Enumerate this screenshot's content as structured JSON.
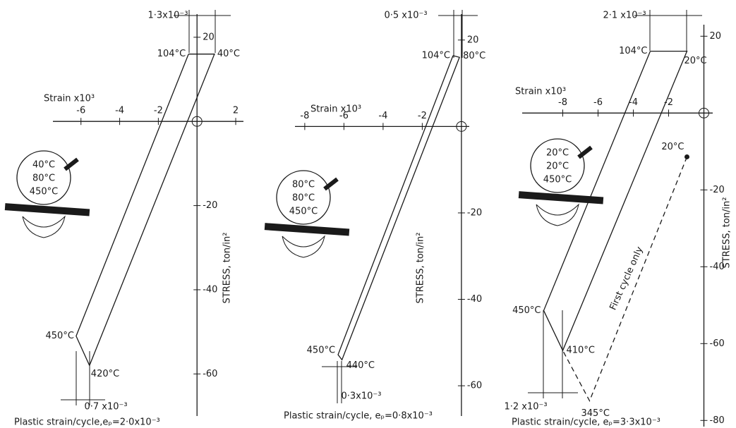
{
  "chart_data": [
    {
      "type": "line",
      "x_label": "Strain x10³",
      "y_label": "STRESS, ton/in²",
      "xlim": [
        -7.45,
        2.4
      ],
      "ylim": [
        -70,
        25.5
      ],
      "xticks": [
        -6,
        -4,
        -2,
        2
      ],
      "yticks": [
        20,
        -20,
        -40,
        -60
      ],
      "series": [
        {
          "color": "#1a1a1a",
          "dashed": false,
          "x": [
            -0.44,
            0.9,
            -5.56,
            -6.25,
            -0.44
          ],
          "values": [
            16,
            16,
            -58,
            -51,
            16
          ],
          "point_labels": [
            "104°C",
            "40°C",
            "420°C",
            "450°C",
            null
          ]
        }
      ],
      "annotations": [
        "1·3x10⁻³",
        "0·7 x10⁻³"
      ],
      "inset_labels": [
        "40°C",
        "80°C",
        "450°C"
      ],
      "caption": "Plastic strain/cycle,eₚ=2·0x10⁻³"
    },
    {
      "type": "line",
      "x_label": "Strain x10³",
      "y_label": "STRESS, ton/in²",
      "xlim": [
        -8.5,
        0.4
      ],
      "ylim": [
        -67,
        26
      ],
      "xticks": [
        -8,
        -6,
        -4,
        -2
      ],
      "yticks": [
        20,
        -20,
        -40,
        -60
      ],
      "series": [
        {
          "color": "#1a1a1a",
          "dashed": false,
          "x": [
            -0.43,
            -0.1,
            -6.1,
            -6.3,
            -0.43
          ],
          "values": [
            16.4,
            16,
            -54,
            -52.8,
            16.4
          ],
          "point_labels": [
            "104°C",
            "80°C",
            "440°C",
            "450°C",
            null
          ]
        }
      ],
      "annotations": [
        "0·5 x10⁻³",
        "0·3x10⁻³"
      ],
      "inset_labels": [
        "80°C",
        "80°C",
        "450°C"
      ],
      "caption": "Plastic strain/cycle, eₚ=0·8x10⁻³"
    },
    {
      "type": "line",
      "x_label": "Strain x10³",
      "y_label": "STRESS, ton/in²",
      "xlim": [
        -10.3,
        0.5
      ],
      "ylim": [
        -81.6,
        23
      ],
      "xticks": [
        -8,
        -6,
        -4,
        -2
      ],
      "yticks": [
        20,
        -20,
        -40,
        -60,
        -80
      ],
      "series": [
        {
          "color": "#1a1a1a",
          "dashed": false,
          "x": [
            -3.04,
            -0.96,
            -8,
            -9.08,
            -3.04
          ],
          "values": [
            16.1,
            16.1,
            -61.8,
            -51.4,
            16.1
          ],
          "point_labels": [
            "104°C",
            "20°C",
            "410°C",
            "450°C",
            null
          ]
        },
        {
          "color": "#1a1a1a",
          "dashed": true,
          "x": [
            -0.96,
            -6.48,
            -8
          ],
          "values": [
            -11.4,
            -74.9,
            -61.8
          ],
          "point_labels": [
            "20°C",
            "345°C",
            null
          ]
        }
      ],
      "annotations": [
        "2·1 x10⁻³",
        "1·2 x10⁻³",
        "First cycle only"
      ],
      "inset_labels": [
        "20°C",
        "20°C",
        "450°C"
      ],
      "caption": "Plastic strain/cycle, eₚ=3·3x10⁻³"
    }
  ]
}
